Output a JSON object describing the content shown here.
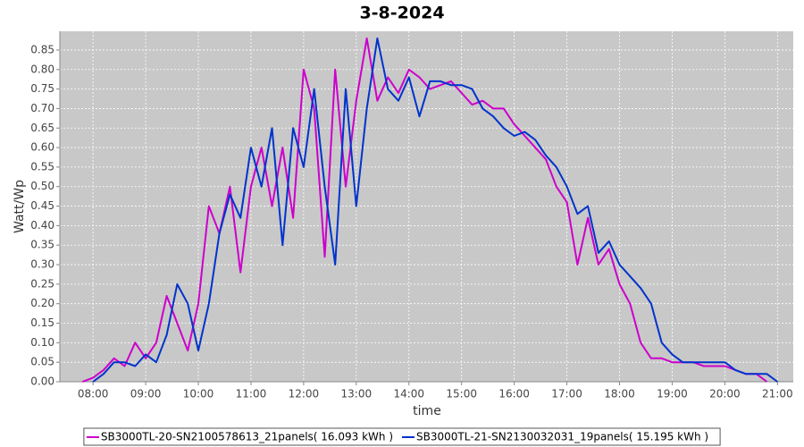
{
  "chart_data": {
    "type": "line",
    "title": "3-8-2024",
    "x_label": "time",
    "y_label": "Watt/Wp",
    "x": [
      7.8,
      8,
      8.2,
      8.4,
      8.6,
      8.8,
      9,
      9.2,
      9.4,
      9.6,
      9.8,
      10,
      10.2,
      10.4,
      10.6,
      10.8,
      11,
      11.2,
      11.4,
      11.6,
      11.8,
      12,
      12.2,
      12.4,
      12.6,
      12.8,
      13,
      13.2,
      13.4,
      13.6,
      13.8,
      14,
      14.2,
      14.4,
      14.6,
      14.8,
      15,
      15.2,
      15.4,
      15.6,
      15.8,
      16,
      16.2,
      16.4,
      16.6,
      16.8,
      17,
      17.2,
      17.4,
      17.6,
      17.8,
      18,
      18.2,
      18.4,
      18.6,
      18.8,
      19,
      19.2,
      19.4,
      19.6,
      19.8,
      20,
      20.2,
      20.4,
      20.6,
      20.8,
      21
    ],
    "series": [
      {
        "name": "SB3000TL-20-SN2100578613_21panels( 16.093 kWh )",
        "color": "#cc00cc",
        "values": [
          0,
          0.01,
          0.03,
          0.06,
          0.04,
          0.1,
          0.06,
          0.1,
          0.22,
          0.15,
          0.08,
          0.2,
          0.45,
          0.38,
          0.5,
          0.28,
          0.5,
          0.6,
          0.45,
          0.6,
          0.42,
          0.8,
          0.7,
          0.32,
          0.8,
          0.5,
          0.72,
          0.88,
          0.72,
          0.78,
          0.74,
          0.8,
          0.78,
          0.75,
          0.76,
          0.77,
          0.74,
          0.71,
          0.72,
          0.7,
          0.7,
          0.66,
          0.63,
          0.6,
          0.57,
          0.5,
          0.46,
          0.3,
          0.42,
          0.3,
          0.34,
          0.25,
          0.2,
          0.1,
          0.06,
          0.06,
          0.05,
          0.05,
          0.05,
          0.04,
          0.04,
          0.04,
          0.03,
          0.02,
          0.02,
          0,
          null
        ]
      },
      {
        "name": "SB3000TL-21-SN2130032031_19panels( 15.195 kWh )",
        "color": "#0033cc",
        "values": [
          null,
          0,
          0.02,
          0.05,
          0.05,
          0.04,
          0.07,
          0.05,
          0.12,
          0.25,
          0.2,
          0.08,
          0.2,
          0.38,
          0.48,
          0.42,
          0.6,
          0.5,
          0.65,
          0.35,
          0.65,
          0.55,
          0.75,
          0.5,
          0.3,
          0.75,
          0.45,
          0.7,
          0.88,
          0.75,
          0.72,
          0.78,
          0.68,
          0.77,
          0.77,
          0.76,
          0.76,
          0.75,
          0.7,
          0.68,
          0.65,
          0.63,
          0.64,
          0.62,
          0.58,
          0.55,
          0.5,
          0.43,
          0.45,
          0.33,
          0.36,
          0.3,
          0.27,
          0.24,
          0.2,
          0.1,
          0.07,
          0.05,
          0.05,
          0.05,
          0.05,
          0.05,
          0.03,
          0.02,
          0.02,
          0.02,
          0
        ]
      }
    ],
    "xlim": [
      7.37,
      21.3
    ],
    "xticks": [
      {
        "value": 8,
        "label": "08:00"
      },
      {
        "value": 9,
        "label": "09:00"
      },
      {
        "value": 10,
        "label": "10:00"
      },
      {
        "value": 11,
        "label": "11:00"
      },
      {
        "value": 12,
        "label": "12:00"
      },
      {
        "value": 13,
        "label": "13:00"
      },
      {
        "value": 14,
        "label": "14:00"
      },
      {
        "value": 15,
        "label": "15:00"
      },
      {
        "value": 16,
        "label": "16:00"
      },
      {
        "value": 17,
        "label": "17:00"
      },
      {
        "value": 18,
        "label": "18:00"
      },
      {
        "value": 19,
        "label": "19:00"
      },
      {
        "value": 20,
        "label": "20:00"
      },
      {
        "value": 21,
        "label": "21:00"
      }
    ],
    "ylim": [
      0,
      0.898
    ],
    "yticks": [
      {
        "value": 0,
        "label": "0.00"
      },
      {
        "value": 0.05,
        "label": "0.05"
      },
      {
        "value": 0.1,
        "label": "0.10"
      },
      {
        "value": 0.15,
        "label": "0.15"
      },
      {
        "value": 0.2,
        "label": "0.20"
      },
      {
        "value": 0.25,
        "label": "0.25"
      },
      {
        "value": 0.3,
        "label": "0.30"
      },
      {
        "value": 0.35,
        "label": "0.35"
      },
      {
        "value": 0.4,
        "label": "0.40"
      },
      {
        "value": 0.45,
        "label": "0.45"
      },
      {
        "value": 0.5,
        "label": "0.50"
      },
      {
        "value": 0.55,
        "label": "0.55"
      },
      {
        "value": 0.6,
        "label": "0.60"
      },
      {
        "value": 0.65,
        "label": "0.65"
      },
      {
        "value": 0.7,
        "label": "0.70"
      },
      {
        "value": 0.75,
        "label": "0.75"
      },
      {
        "value": 0.8,
        "label": "0.80"
      },
      {
        "value": 0.85,
        "label": "0.85"
      }
    ],
    "grid": true,
    "plot_background": "#c8c8c8",
    "legend_position": "bottom"
  }
}
